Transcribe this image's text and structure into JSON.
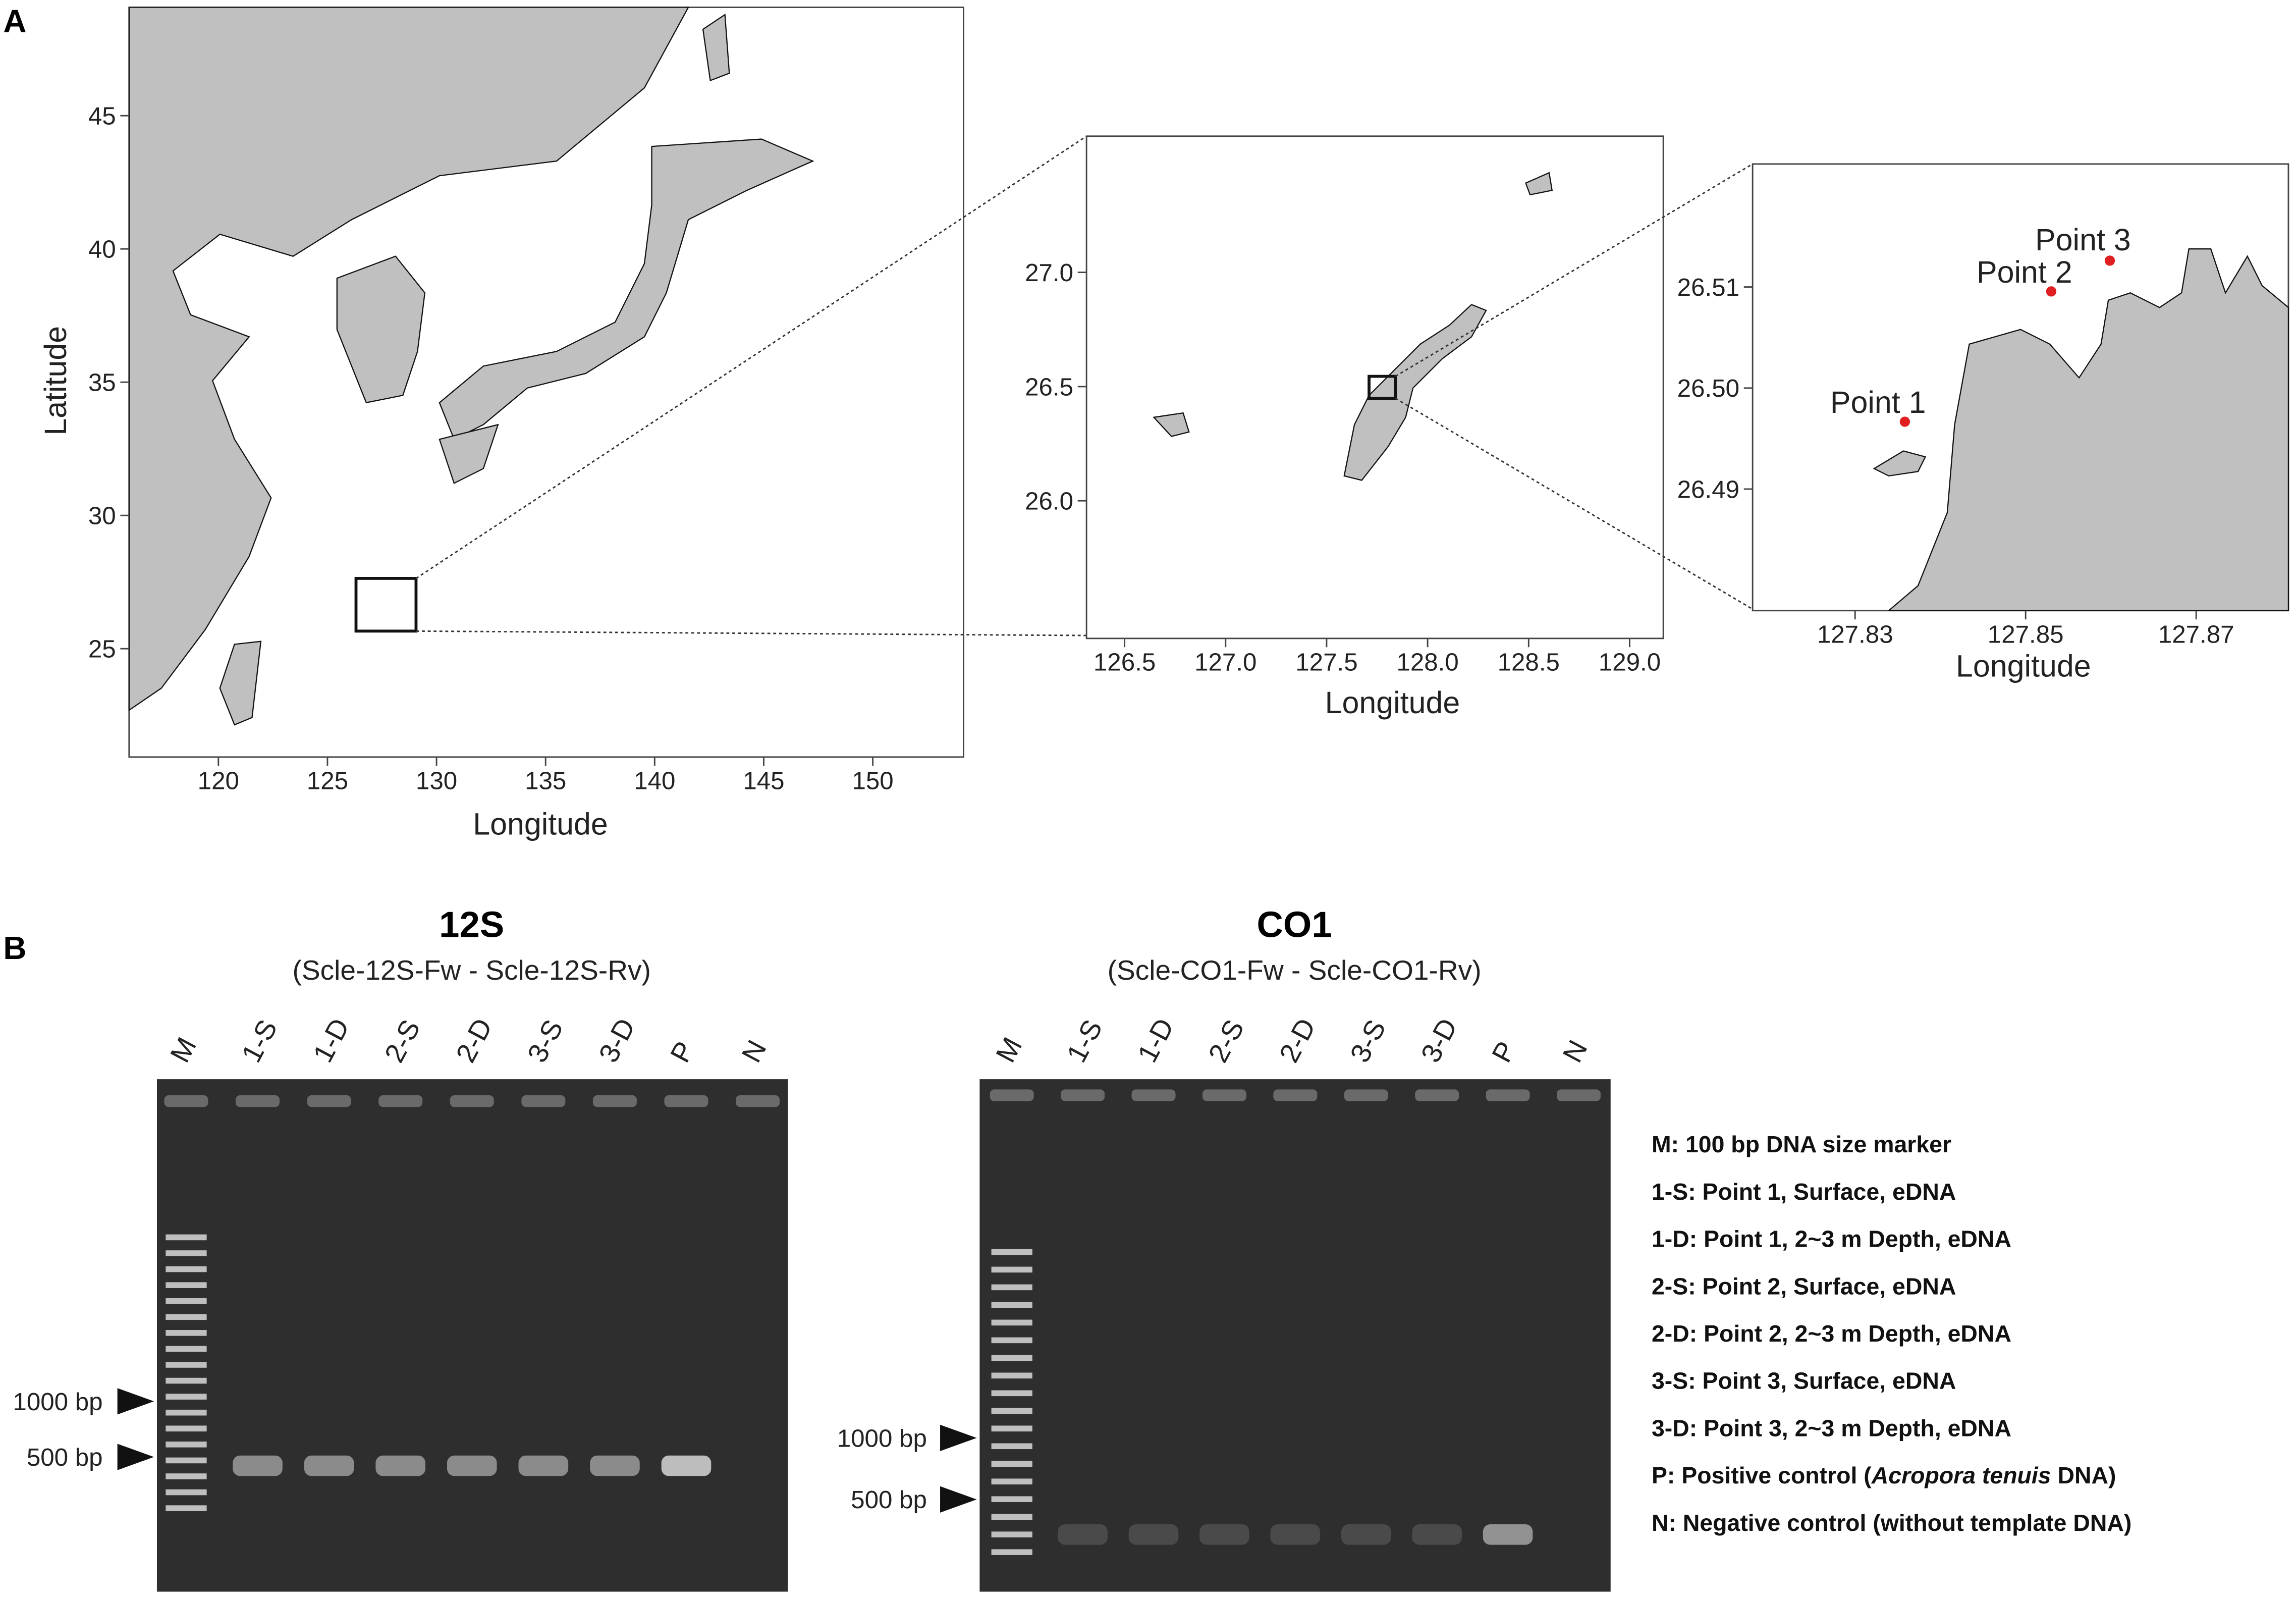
{
  "panel_a": {
    "label": "A",
    "map_1": {
      "x_axis_label": "Longitude",
      "y_axis_label": "Latitude",
      "x_ticks": [
        "120",
        "125",
        "130",
        "135",
        "140",
        "145",
        "150"
      ],
      "y_ticks": [
        "45",
        "40",
        "35",
        "30",
        "25"
      ]
    },
    "map_2": {
      "x_axis_label": "Longitude",
      "x_ticks": [
        "126.5",
        "127.0",
        "127.5",
        "128.0",
        "128.5",
        "129.0"
      ],
      "y_ticks": [
        "27.0",
        "26.5",
        "26.0"
      ]
    },
    "map_3": {
      "x_axis_label": "Longitude",
      "x_ticks": [
        "127.83",
        "127.85",
        "127.87"
      ],
      "y_ticks": [
        "26.51",
        "26.50",
        "26.49"
      ],
      "points": [
        "Point 1",
        "Point 2",
        "Point 3"
      ]
    }
  },
  "panel_b": {
    "label": "B",
    "gels": [
      {
        "title": "12S",
        "subtitle": "(Scle-12S-Fw - Scle-12S-Rv)",
        "lanes": [
          "M",
          "1-S",
          "1-D",
          "2-S",
          "2-D",
          "3-S",
          "3-D",
          "P",
          "N"
        ],
        "size_labels": [
          "1000 bp",
          "500 bp"
        ]
      },
      {
        "title": "CO1",
        "subtitle": "(Scle-CO1-Fw - Scle-CO1-Rv)",
        "lanes": [
          "M",
          "1-S",
          "1-D",
          "2-S",
          "2-D",
          "3-S",
          "3-D",
          "P",
          "N"
        ],
        "size_labels": [
          "1000 bp",
          "500 bp"
        ]
      }
    ],
    "legend": [
      "M: 100 bp DNA size marker",
      "1-S: Point 1, Surface, eDNA",
      "1-D: Point 1, 2~3 m Depth, eDNA",
      "2-S: Point 2, Surface, eDNA",
      "2-D: Point 2, 2~3 m Depth, eDNA",
      "3-S: Point 3, Surface, eDNA",
      "3-D: Point 3, 2~3 m Depth, eDNA",
      {
        "prefix": "P: Positive control (",
        "species": "Acropora tenuis",
        "suffix": " DNA)"
      },
      "N: Negative control (without template DNA)"
    ]
  }
}
